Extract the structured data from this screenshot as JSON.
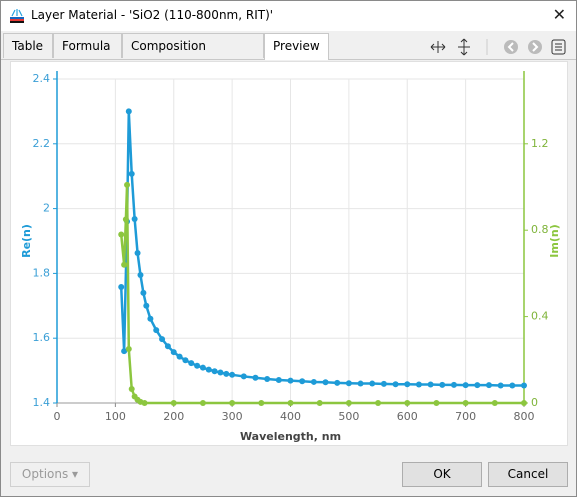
{
  "window": {
    "title": "Layer Material - 'SiO2 (110-800nm, RIT)'"
  },
  "tabs": [
    "Table",
    "Formula",
    "Composition Function",
    "Preview"
  ],
  "chart_data": {
    "type": "line",
    "xlabel": "Wavelength, nm",
    "ylabel": "Re(n)",
    "y2label": "Im(n)",
    "xlim": [
      0,
      800
    ],
    "xticks": [
      0,
      100,
      200,
      300,
      400,
      500,
      600,
      700,
      800
    ],
    "ylim": [
      1.4,
      2.4
    ],
    "yticks": [
      1.4,
      1.6,
      1.8,
      2,
      2.2,
      2.4
    ],
    "y2lim": [
      0,
      1.5
    ],
    "y2ticks": [
      0,
      0.4,
      0.8,
      1.2
    ],
    "grid": true,
    "series": [
      {
        "color": "#1e9bd7",
        "x": [
          110,
          115,
          120,
          123,
          128,
          133,
          138,
          143,
          148,
          153,
          160,
          170,
          180,
          190,
          200,
          210,
          220,
          230,
          240,
          250,
          260,
          270,
          280,
          290,
          300,
          320,
          340,
          360,
          380,
          400,
          420,
          440,
          460,
          480,
          500,
          520,
          540,
          560,
          580,
          600,
          620,
          640,
          660,
          680,
          700,
          720,
          740,
          760,
          780,
          800
        ],
        "values": [
          1.758,
          1.56,
          1.96,
          2.3,
          2.107,
          1.968,
          1.863,
          1.795,
          1.74,
          1.7,
          1.66,
          1.625,
          1.597,
          1.575,
          1.557,
          1.543,
          1.532,
          1.523,
          1.515,
          1.509,
          1.503,
          1.498,
          1.494,
          1.49,
          1.487,
          1.482,
          1.478,
          1.474,
          1.471,
          1.469,
          1.467,
          1.465,
          1.464,
          1.462,
          1.461,
          1.46,
          1.46,
          1.459,
          1.458,
          1.458,
          1.457,
          1.457,
          1.456,
          1.456,
          1.455,
          1.455,
          1.455,
          1.454,
          1.454,
          1.454
        ]
      },
      {
        "color": "#8cc63f",
        "axis": "y2",
        "x": [
          110,
          115,
          118,
          120,
          123,
          128,
          133,
          138,
          143,
          150,
          200,
          250,
          300,
          350,
          400,
          450,
          500,
          550,
          600,
          650,
          700,
          750,
          800
        ],
        "values": [
          0.78,
          0.64,
          0.85,
          1.01,
          0.25,
          0.065,
          0.03,
          0.015,
          0.005,
          0,
          0,
          0,
          0,
          0,
          0,
          0,
          0,
          0,
          0,
          0,
          0,
          0,
          0
        ]
      }
    ]
  },
  "buttons": {
    "options": "Options",
    "ok": "OK",
    "cancel": "Cancel"
  }
}
